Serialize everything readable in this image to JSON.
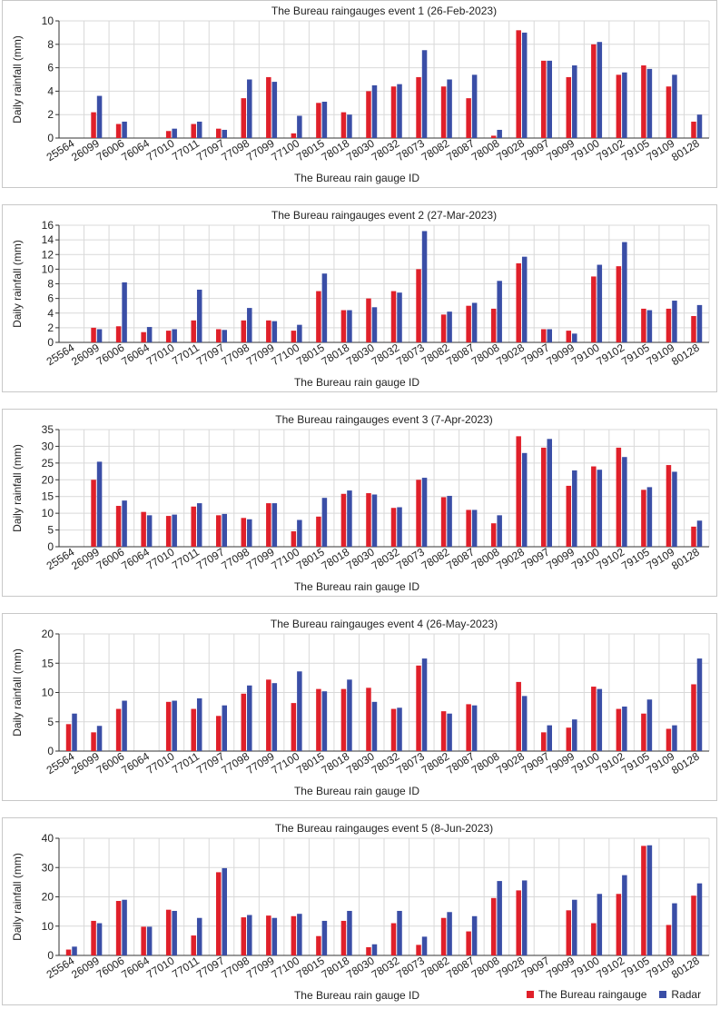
{
  "colors": {
    "gauge": "#e0202a",
    "radar": "#3a4ea6",
    "grid": "#d9d9d9",
    "axis": "#333333"
  },
  "legend": {
    "gauge_label": "The Bureau raingauge",
    "radar_label": "Radar"
  },
  "chart_data": [
    {
      "type": "bar",
      "title": "The Bureau raingauges event 1 (26-Feb-2023)",
      "xlabel": "The Bureau rain gauge ID",
      "ylabel": "Daily rainfall (mm)",
      "ylim": [
        0,
        10
      ],
      "ystep": 2,
      "categories": [
        "25564",
        "26099",
        "76006",
        "76064",
        "77010",
        "77011",
        "77097",
        "77098",
        "77099",
        "77100",
        "78015",
        "78018",
        "78030",
        "78032",
        "78073",
        "78082",
        "78087",
        "78008",
        "79028",
        "79097",
        "79099",
        "79100",
        "79102",
        "79105",
        "79109",
        "80128"
      ],
      "series": [
        {
          "name": "The Bureau raingauge",
          "values": [
            0,
            2.2,
            1.2,
            0,
            0.6,
            1.2,
            0.8,
            3.4,
            5.2,
            0.4,
            3.0,
            2.2,
            4.0,
            4.4,
            5.2,
            4.4,
            3.4,
            0.2,
            9.2,
            6.6,
            5.2,
            8.0,
            5.4,
            6.2,
            4.4,
            1.4
          ]
        },
        {
          "name": "Radar",
          "values": [
            0,
            3.6,
            1.4,
            0,
            0.8,
            1.4,
            0.7,
            5.0,
            4.8,
            1.9,
            3.1,
            2.0,
            4.5,
            4.6,
            7.5,
            5.0,
            5.4,
            0.7,
            9.0,
            6.6,
            6.2,
            8.2,
            5.6,
            5.9,
            5.4,
            2.0
          ]
        }
      ]
    },
    {
      "type": "bar",
      "title": "The Bureau raingauges event 2 (27-Mar-2023)",
      "xlabel": "The Bureau rain gauge ID",
      "ylabel": "Daily rainfall (mm)",
      "ylim": [
        0,
        16
      ],
      "ystep": 2,
      "categories": [
        "25564",
        "26099",
        "76006",
        "76064",
        "77010",
        "77011",
        "77097",
        "77098",
        "77099",
        "77100",
        "78015",
        "78018",
        "78030",
        "78032",
        "78073",
        "78082",
        "78087",
        "78008",
        "79028",
        "79097",
        "79099",
        "79100",
        "79102",
        "79105",
        "79109",
        "80128"
      ],
      "series": [
        {
          "name": "The Bureau raingauge",
          "values": [
            0,
            2.0,
            2.2,
            1.4,
            1.6,
            3.0,
            1.8,
            3.0,
            3.0,
            1.6,
            7.0,
            4.4,
            6.0,
            7.0,
            10.0,
            3.8,
            5.0,
            4.6,
            10.8,
            1.8,
            1.6,
            9.0,
            10.4,
            4.6,
            4.6,
            3.6
          ]
        },
        {
          "name": "Radar",
          "values": [
            0,
            1.8,
            8.2,
            2.1,
            1.8,
            7.2,
            1.7,
            4.7,
            2.9,
            2.4,
            9.4,
            4.4,
            4.8,
            6.8,
            15.2,
            4.2,
            5.4,
            8.4,
            11.7,
            1.8,
            1.2,
            10.6,
            13.7,
            4.4,
            5.7,
            5.1
          ]
        }
      ]
    },
    {
      "type": "bar",
      "title": "The Bureau raingauges event 3 (7-Apr-2023)",
      "xlabel": "The Bureau rain gauge ID",
      "ylabel": "Daily rainfall (mm)",
      "ylim": [
        0,
        35
      ],
      "ystep": 5,
      "categories": [
        "25564",
        "26099",
        "76006",
        "76064",
        "77010",
        "77011",
        "77097",
        "77098",
        "77099",
        "77100",
        "78015",
        "78018",
        "78030",
        "78032",
        "78073",
        "78082",
        "78087",
        "78008",
        "79028",
        "79097",
        "79099",
        "79100",
        "79102",
        "79105",
        "79109",
        "80128"
      ],
      "series": [
        {
          "name": "The Bureau raingauge",
          "values": [
            0,
            20.0,
            12.2,
            10.4,
            9.2,
            12.0,
            9.4,
            8.6,
            13.0,
            4.6,
            9.0,
            15.8,
            16.0,
            11.6,
            20.0,
            14.8,
            11.0,
            7.0,
            33.0,
            29.6,
            18.2,
            24.0,
            29.6,
            17.0,
            24.4,
            6.0
          ]
        },
        {
          "name": "Radar",
          "values": [
            0,
            25.4,
            13.8,
            9.4,
            9.6,
            13.0,
            9.8,
            8.2,
            13.0,
            8.0,
            14.6,
            16.8,
            15.6,
            11.8,
            20.6,
            15.2,
            11.0,
            9.4,
            28.0,
            32.2,
            22.8,
            23.0,
            26.8,
            17.8,
            22.4,
            7.8
          ]
        }
      ]
    },
    {
      "type": "bar",
      "title": "The Bureau raingauges event 4 (26-May-2023)",
      "xlabel": "The Bureau rain gauge ID",
      "ylabel": "Daily rainfall (mm)",
      "ylim": [
        0,
        20
      ],
      "ystep": 5,
      "categories": [
        "25564",
        "26099",
        "76006",
        "76064",
        "77010",
        "77011",
        "77097",
        "77098",
        "77099",
        "77100",
        "78015",
        "78018",
        "78030",
        "78032",
        "78073",
        "78082",
        "78087",
        "78008",
        "79028",
        "79097",
        "79099",
        "79100",
        "79102",
        "79105",
        "79109",
        "80128"
      ],
      "series": [
        {
          "name": "The Bureau raingauge",
          "values": [
            4.6,
            3.2,
            7.2,
            0,
            8.4,
            7.2,
            6.0,
            9.8,
            12.2,
            8.2,
            10.6,
            10.6,
            10.8,
            7.2,
            14.6,
            6.8,
            8.0,
            0,
            11.8,
            3.2,
            4.0,
            11.0,
            7.2,
            6.4,
            3.8,
            11.4
          ]
        },
        {
          "name": "Radar",
          "values": [
            6.4,
            4.3,
            8.6,
            0,
            8.6,
            9.0,
            7.8,
            11.2,
            11.6,
            13.6,
            10.2,
            12.2,
            8.4,
            7.4,
            15.8,
            6.4,
            7.8,
            0,
            9.4,
            4.4,
            5.4,
            10.6,
            7.6,
            8.8,
            4.4,
            15.8
          ]
        }
      ]
    },
    {
      "type": "bar",
      "title": "The Bureau raingauges event 5 (8-Jun-2023)",
      "xlabel": "The Bureau rain gauge ID",
      "ylabel": "Daily rainfall (mm)",
      "ylim": [
        0,
        40
      ],
      "ystep": 10,
      "categories": [
        "25564",
        "26099",
        "76006",
        "76064",
        "77010",
        "77011",
        "77097",
        "77098",
        "77099",
        "77100",
        "78015",
        "78018",
        "78030",
        "78032",
        "78073",
        "78082",
        "78087",
        "78008",
        "79028",
        "79097",
        "79099",
        "79100",
        "79102",
        "79105",
        "79109",
        "80128"
      ],
      "series": [
        {
          "name": "The Bureau raingauge",
          "values": [
            2.0,
            11.8,
            18.6,
            9.8,
            15.6,
            6.8,
            28.4,
            13.0,
            13.6,
            13.4,
            6.6,
            11.8,
            2.8,
            11.0,
            3.6,
            12.8,
            8.2,
            19.6,
            22.2,
            0,
            15.4,
            11.0,
            21.0,
            37.4,
            10.4,
            20.4
          ]
        },
        {
          "name": "Radar",
          "values": [
            3.0,
            11.0,
            19.0,
            9.8,
            15.2,
            12.8,
            29.8,
            13.8,
            12.8,
            14.2,
            11.8,
            15.2,
            3.8,
            15.2,
            6.4,
            14.8,
            13.4,
            25.4,
            25.6,
            0,
            19.0,
            21.0,
            27.4,
            37.6,
            17.8,
            24.6
          ]
        }
      ]
    }
  ]
}
